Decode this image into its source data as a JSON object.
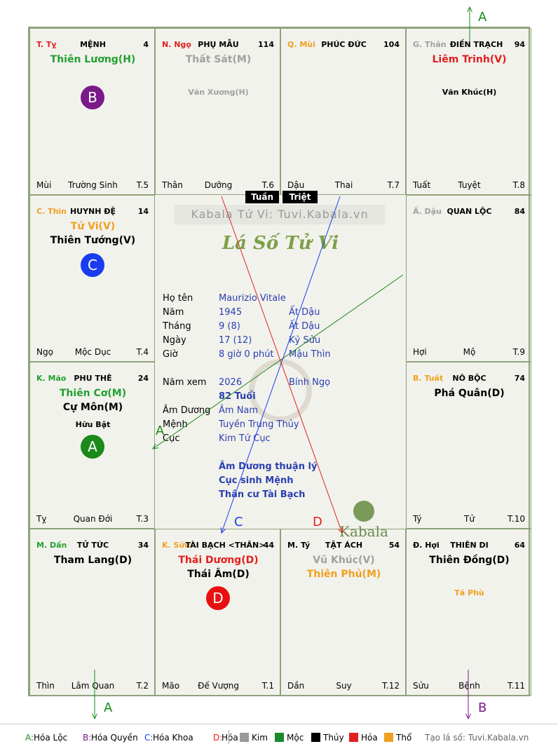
{
  "cells": {
    "menh": {
      "branch": "T. Tỵ",
      "branch_color": "#e02020",
      "name": "MỆNH",
      "num": "4",
      "stars": [
        {
          "t": "Thiên Lương(H)",
          "c": "#22a030"
        }
      ],
      "minor": [],
      "badge": "B",
      "badge_color": "#7a1a8a",
      "foot_l": "Mùi",
      "foot_c": "Trường Sinh",
      "foot_r": "T.5"
    },
    "phumau": {
      "branch": "N. Ngọ",
      "branch_color": "#e02020",
      "name": "PHỤ MẪU",
      "num": "114",
      "stars": [
        {
          "t": "Thất Sát(M)",
          "c": "#a0a0a0"
        }
      ],
      "minor": [
        "Văn Xương(H)"
      ],
      "minor_color": "#a0a0a0",
      "foot_l": "Thân",
      "foot_c": "Dưỡng",
      "foot_r": "T.6"
    },
    "phucduc": {
      "branch": "Q. Mùi",
      "branch_color": "#f0a020",
      "name": "PHÚC ĐỨC",
      "num": "104",
      "stars": [],
      "minor": [],
      "foot_l": "Dậu",
      "foot_c": "Thai",
      "foot_r": "T.7"
    },
    "dientrach": {
      "branch": "G. Thân",
      "branch_color": "#a0a0a0",
      "name": "ĐIỀN TRẠCH",
      "num": "94",
      "stars": [
        {
          "t": "Liêm Trinh(V)",
          "c": "#e02020"
        }
      ],
      "minor": [
        "Văn Khúc(H)"
      ],
      "minor_color": "#000",
      "foot_l": "Tuất",
      "foot_c": "Tuyệt",
      "foot_r": "T.8"
    },
    "huynhde": {
      "branch": "C. Thìn",
      "branch_color": "#f0a020",
      "name": "HUYNH ĐỆ",
      "num": "14",
      "stars": [
        {
          "t": "Tử Vi(V)",
          "c": "#f0a020"
        },
        {
          "t": "Thiên Tướng(V)",
          "c": "#000"
        }
      ],
      "minor": [],
      "badge": "C",
      "badge_color": "#1a3cf0",
      "foot_l": "Ngọ",
      "foot_c": "Mộc Dục",
      "foot_r": "T.4"
    },
    "quanloc": {
      "branch": "Ấ. Dậu",
      "branch_color": "#a0a0a0",
      "name": "QUAN LỘC",
      "num": "84",
      "stars": [],
      "minor": [],
      "foot_l": "Hợi",
      "foot_c": "Mộ",
      "foot_r": "T.9"
    },
    "phuthe": {
      "branch": "K. Mão",
      "branch_color": "#22a030",
      "name": "PHU THÊ",
      "num": "24",
      "stars": [
        {
          "t": "Thiên Cơ(M)",
          "c": "#22a030"
        },
        {
          "t": "Cự Môn(M)",
          "c": "#000"
        }
      ],
      "minor": [
        "Hữu Bật"
      ],
      "minor_color": "#000",
      "badge": "A",
      "badge_color": "#1a8a1a",
      "foot_l": "Tỵ",
      "foot_c": "Quan Đới",
      "foot_r": "T.3"
    },
    "nobo": {
      "branch": "B. Tuất",
      "branch_color": "#f0a020",
      "name": "NÔ BỘC",
      "num": "74",
      "stars": [
        {
          "t": "Phá Quân(D)",
          "c": "#000"
        }
      ],
      "minor": [],
      "foot_l": "Tý",
      "foot_c": "Tử",
      "foot_r": "T.10"
    },
    "tutuc": {
      "branch": "M. Dần",
      "branch_color": "#22a030",
      "name": "TỬ TỨC",
      "num": "34",
      "stars": [
        {
          "t": "Tham Lang(D)",
          "c": "#000"
        }
      ],
      "minor": [],
      "foot_l": "Thìn",
      "foot_c": "Lâm Quan",
      "foot_r": "T.2"
    },
    "taibach": {
      "branch": "K. Sửu",
      "branch_color": "#f0a020",
      "name": "TÀI BẠCH <THÂN>",
      "num": "44",
      "stars": [
        {
          "t": "Thái Dương(D)",
          "c": "#e02020"
        },
        {
          "t": "Thái Âm(D)",
          "c": "#000"
        }
      ],
      "minor": [],
      "badge": "D",
      "badge_color": "#e81010",
      "foot_l": "Mão",
      "foot_c": "Đế Vượng",
      "foot_r": "T.1"
    },
    "tatach": {
      "branch": "M. Tý",
      "branch_color": "#000",
      "name": "TẬT ÁCH",
      "num": "54",
      "stars": [
        {
          "t": "Vũ Khúc(V)",
          "c": "#a0a0a0"
        },
        {
          "t": "Thiên Phủ(M)",
          "c": "#f0a020"
        }
      ],
      "minor": [],
      "foot_l": "Dần",
      "foot_c": "Suy",
      "foot_r": "T.12"
    },
    "thiendi": {
      "branch": "Đ. Hợi",
      "branch_color": "#000",
      "name": "THIÊN DI",
      "num": "64",
      "stars": [
        {
          "t": "Thiên Đồng(D)",
          "c": "#000"
        }
      ],
      "minor": [
        "Tả Phù"
      ],
      "minor_color": "#f0a020",
      "foot_l": "Sửu",
      "foot_c": "Bệnh",
      "foot_r": "T.11"
    }
  },
  "center": {
    "tuan": "Tuần",
    "triet": "Triệt",
    "watermark": "Kabala Tử Vi: Tuvi.Kabala.vn",
    "title": "Lá Số Tử Vi",
    "rows": [
      {
        "l": "Họ tên",
        "v1": "Maurizio Vitale",
        "v2": ""
      },
      {
        "l": "Năm",
        "v1": "1945",
        "v2": "Ất Dậu"
      },
      {
        "l": "Tháng",
        "v1": "9  (8)",
        "v2": "Ất Dậu"
      },
      {
        "l": "Ngày",
        "v1": "17  (12)",
        "v2": "Kỷ Sửu"
      },
      {
        "l": "Giờ",
        "v1": "8 giờ 0 phút",
        "v2": "Mậu Thìn"
      },
      {
        "l": "Năm xem",
        "v1": "2026",
        "v2": "Bính Ngọ"
      },
      {
        "l": "",
        "v1": "82 Tuổi",
        "v2": ""
      },
      {
        "l": "Âm Dương",
        "v1": "Âm Nam",
        "v2": ""
      },
      {
        "l": "Mệnh",
        "v1": "Tuyền Trung Thủy",
        "v2": ""
      },
      {
        "l": "Cục",
        "v1": "Kim Tứ Cục",
        "v2": ""
      }
    ],
    "notes": [
      "Âm Dương thuận lý",
      "Cục sinh Mệnh",
      "Thân cư Tài Bạch"
    ],
    "logo": "Kabala"
  },
  "arrows": {
    "a_top": "A",
    "a_mid": "A",
    "c": "C",
    "d": "D",
    "a_bot": "A",
    "b_bot": "B"
  },
  "legend": {
    "items": [
      {
        "k": "A:",
        "t": " Hóa Lộc",
        "c": "#1a8a1a"
      },
      {
        "k": "B:",
        "t": " Hóa Quyền",
        "c": "#7a1a8a"
      },
      {
        "k": "C:",
        "t": " Hóa Khoa",
        "c": "#1a3cf0"
      },
      {
        "k": "D:",
        "t": " Hóa Kị",
        "c": "#e02020"
      }
    ],
    "elements": [
      {
        "t": "Kim",
        "c": "#9a9a9a"
      },
      {
        "t": "Mộc",
        "c": "#1a8a2a"
      },
      {
        "t": "Thủy",
        "c": "#000000"
      },
      {
        "t": "Hỏa",
        "c": "#e02020"
      },
      {
        "t": "Thổ",
        "c": "#f0a020"
      }
    ],
    "site": "Tạo lá số: Tuvi.Kabala.vn"
  }
}
